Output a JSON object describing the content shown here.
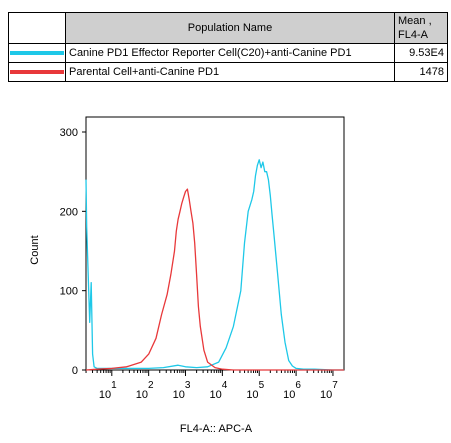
{
  "legend_table": {
    "header_name": "Population Name",
    "header_mean_line1": "Mean ,",
    "header_mean_line2": "FL4-A",
    "rows": [
      {
        "color": "#1ec8e8",
        "name": "Canine PD1 Effector Reporter Cell(C20)+anti-Canine PD1",
        "mean": "9.53E4"
      },
      {
        "color": "#e8383a",
        "name": "Parental Cell+anti-Canine PD1",
        "mean": "1478"
      }
    ]
  },
  "chart_data": {
    "type": "line",
    "xlabel": "FL4-A:: APC-A",
    "ylabel": "Count",
    "ylim": [
      0,
      320
    ],
    "xlim": [
      0.3,
      7.3
    ],
    "yticks": [
      "0",
      "100",
      "200",
      "300"
    ],
    "yticks_values": [
      0,
      100,
      200,
      300
    ],
    "xticks": [
      {
        "base": "10",
        "exp": "1",
        "value": 1
      },
      {
        "base": "10",
        "exp": "2",
        "value": 2
      },
      {
        "base": "10",
        "exp": "3",
        "value": 3
      },
      {
        "base": "10",
        "exp": "4",
        "value": 4
      },
      {
        "base": "10",
        "exp": "5",
        "value": 5
      },
      {
        "base": "10",
        "exp": "6",
        "value": 6
      },
      {
        "base": "10",
        "exp": "7",
        "value": 7
      }
    ],
    "series": [
      {
        "color": "#1ec8e8",
        "x": [
          0.3,
          0.32,
          0.36,
          0.4,
          0.44,
          0.48,
          0.52,
          0.6,
          0.8,
          1.2,
          1.6,
          2.0,
          2.4,
          2.8,
          3.0,
          3.3,
          3.6,
          3.9,
          4.1,
          4.3,
          4.5,
          4.6,
          4.7,
          4.8,
          4.85,
          4.9,
          4.95,
          5.0,
          5.05,
          5.1,
          5.15,
          5.2,
          5.25,
          5.3,
          5.35,
          5.4,
          5.5,
          5.6,
          5.7,
          5.8,
          5.9,
          6.0,
          6.2,
          6.5,
          7.0,
          7.3
        ],
        "y": [
          240,
          180,
          120,
          60,
          110,
          20,
          4,
          2,
          2,
          2,
          2,
          2,
          3,
          6,
          4,
          3,
          4,
          10,
          28,
          55,
          100,
          160,
          200,
          215,
          225,
          245,
          258,
          265,
          255,
          262,
          250,
          250,
          240,
          220,
          195,
          170,
          120,
          70,
          35,
          12,
          5,
          2,
          1,
          1,
          0,
          0
        ]
      },
      {
        "color": "#e8383a",
        "x": [
          0.3,
          0.6,
          1.0,
          1.4,
          1.8,
          2.0,
          2.2,
          2.35,
          2.5,
          2.6,
          2.7,
          2.75,
          2.8,
          2.85,
          2.9,
          2.95,
          3.0,
          3.05,
          3.1,
          3.15,
          3.2,
          3.25,
          3.3,
          3.35,
          3.4,
          3.5,
          3.6,
          3.8,
          4.0,
          4.3,
          7.3
        ],
        "y": [
          0,
          1,
          2,
          4,
          10,
          20,
          40,
          70,
          95,
          120,
          150,
          175,
          190,
          200,
          210,
          218,
          225,
          228,
          215,
          200,
          185,
          160,
          120,
          80,
          55,
          25,
          10,
          3,
          1,
          0,
          0
        ]
      }
    ],
    "grid": false
  }
}
